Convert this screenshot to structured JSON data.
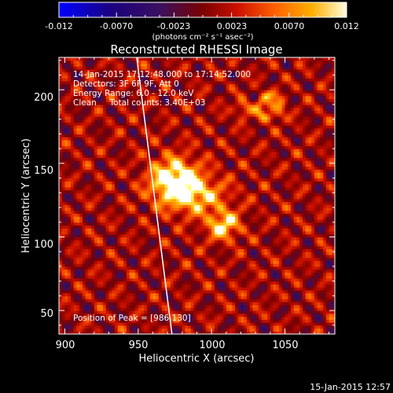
{
  "chart_data": {
    "type": "heatmap",
    "title": "Reconstructed RHESSI Image",
    "xlabel": "Heliocentric X (arcsec)",
    "ylabel": "Heliocentric Y (arcsec)",
    "xlim": [
      896,
      1084
    ],
    "ylim": [
      34,
      222
    ],
    "x_ticks": [
      900,
      950,
      1000,
      1050
    ],
    "y_ticks": [
      50,
      100,
      150,
      200
    ],
    "colorbar": {
      "tick_labels": [
        "-0.012",
        "-0.0070",
        "-0.0023",
        "0.0023",
        "0.0070",
        "0.012"
      ],
      "range": [
        -0.012,
        0.012
      ],
      "units_label": "(photons cm⁻² s⁻¹ asec⁻²)"
    },
    "annotations": [
      "14-Jan-2015 17:12:48.000 to 17:14:52.000",
      "Detectors: 3F 6F 9F, Att 0",
      "Energy Range: 6.0 - 12.0 keV",
      "Clean     Total counts: 3.40E+03"
    ],
    "peak_label": "Position of Peak = [986,130]",
    "peak": [
      986,
      130
    ],
    "footer_date": "15-Jan-2015 12:57",
    "sources": [
      {
        "x": 975,
        "y": 140,
        "peak": 0.012,
        "sx": 12,
        "sy": 10
      },
      {
        "x": 988,
        "y": 128,
        "peak": 0.008,
        "sx": 16,
        "sy": 9
      },
      {
        "x": 1008,
        "y": 108,
        "peak": 0.0095,
        "sx": 8,
        "sy": 7
      },
      {
        "x": 1040,
        "y": 189,
        "peak": 0.005,
        "sx": 5,
        "sy": 5
      },
      {
        "x": 1022,
        "y": 187,
        "peak": 0.006,
        "sx": 4,
        "sy": 4
      }
    ],
    "limb_x_at_ytop": 949,
    "limb_x_at_ybottom": 973,
    "colors": {
      "background": "#000000",
      "limb": "#ffffff",
      "colormap": [
        "#0000ff",
        "#1b0060",
        "#3a1060",
        "#7a0000",
        "#cc1000",
        "#ff6000",
        "#ffb000",
        "#ffff80",
        "#ffffff"
      ]
    }
  }
}
